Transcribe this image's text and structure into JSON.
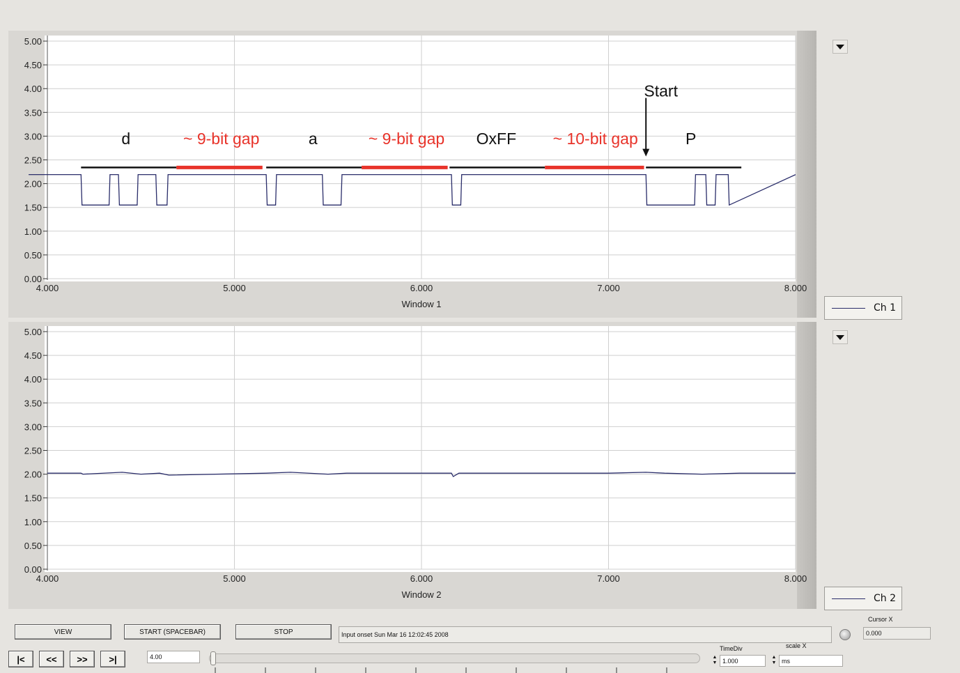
{
  "windows": [
    {
      "name": "Window 1",
      "legend": "Ch 1",
      "chart_data": {
        "type": "line",
        "xlabel": "Window 1",
        "xlim": [
          4.0,
          8.0
        ],
        "ylim": [
          0.0,
          5.0
        ],
        "xticks": [
          "4.000",
          "5.000",
          "6.000",
          "7.000",
          "8.000"
        ],
        "yticks": [
          "0.00",
          "0.50",
          "1.00",
          "1.50",
          "2.00",
          "2.50",
          "3.00",
          "3.50",
          "4.00",
          "4.50",
          "5.00"
        ],
        "grid": true,
        "series": [
          {
            "name": "Ch 1",
            "color": "#2a2d6a",
            "x": [
              3.9,
              4.18,
              4.185,
              4.33,
              4.335,
              4.38,
              4.385,
              4.48,
              4.485,
              4.58,
              4.585,
              4.64,
              4.645,
              5.17,
              5.175,
              5.22,
              5.225,
              5.47,
              5.475,
              5.57,
              5.575,
              6.16,
              6.165,
              6.21,
              6.215,
              7.2,
              7.205,
              7.46,
              7.465,
              7.52,
              7.525,
              7.57,
              7.575,
              7.64,
              7.645,
              8.0
            ],
            "y": [
              2.19,
              2.19,
              1.55,
              1.55,
              2.19,
              2.19,
              1.55,
              1.55,
              2.19,
              2.19,
              1.55,
              1.55,
              2.19,
              2.19,
              1.55,
              1.55,
              2.19,
              2.19,
              1.55,
              1.55,
              2.19,
              2.19,
              1.55,
              1.55,
              2.19,
              2.19,
              1.55,
              1.55,
              2.19,
              2.19,
              1.55,
              1.55,
              2.19,
              2.19,
              1.55,
              2.19
            ]
          }
        ],
        "annotations": [
          {
            "text": "d",
            "x": 4.42,
            "y": 2.95,
            "color": "#111111",
            "bar": [
              4.18,
              4.69
            ]
          },
          {
            "text": "~ 9-bit gap",
            "x": 4.93,
            "y": 2.95,
            "color": "#e8332a",
            "bar": [
              4.69,
              5.15
            ]
          },
          {
            "text": "a",
            "x": 5.42,
            "y": 2.95,
            "color": "#111111",
            "bar": [
              5.17,
              5.68
            ]
          },
          {
            "text": "~ 9-bit gap",
            "x": 5.92,
            "y": 2.95,
            "color": "#e8332a",
            "bar": [
              5.68,
              6.14
            ]
          },
          {
            "text": "OxFF",
            "x": 6.4,
            "y": 2.95,
            "color": "#111111",
            "bar": [
              6.15,
              6.66
            ]
          },
          {
            "text": "~ 10-bit gap",
            "x": 6.93,
            "y": 2.95,
            "color": "#e8332a",
            "bar": [
              6.66,
              7.19
            ]
          },
          {
            "text": "P",
            "x": 7.44,
            "y": 2.95,
            "color": "#111111",
            "bar": [
              7.2,
              7.71
            ]
          },
          {
            "text": "Start",
            "x": 7.28,
            "y": 3.95,
            "color": "#111111",
            "arrow_to": [
              7.2,
              2.6
            ]
          }
        ]
      }
    },
    {
      "name": "Window 2",
      "legend": "Ch 2",
      "chart_data": {
        "type": "line",
        "xlabel": "Window 2",
        "xlim": [
          4.0,
          8.0
        ],
        "ylim": [
          0.0,
          5.0
        ],
        "xticks": [
          "4.000",
          "5.000",
          "6.000",
          "7.000",
          "8.000"
        ],
        "yticks": [
          "0.00",
          "0.50",
          "1.00",
          "1.50",
          "2.00",
          "2.50",
          "3.00",
          "3.50",
          "4.00",
          "4.50",
          "5.00"
        ],
        "grid": true,
        "series": [
          {
            "name": "Ch 2",
            "color": "#2a2d6a",
            "x": [
              4.0,
              4.18,
              4.19,
              4.4,
              4.5,
              4.6,
              4.65,
              5.17,
              5.3,
              5.5,
              5.6,
              6.16,
              6.17,
              6.2,
              7.0,
              7.2,
              7.3,
              7.5,
              7.7,
              8.0
            ],
            "y": [
              2.02,
              2.02,
              2.0,
              2.04,
              2.0,
              2.02,
              1.98,
              2.02,
              2.04,
              2.0,
              2.02,
              2.02,
              1.95,
              2.02,
              2.02,
              2.04,
              2.02,
              2.0,
              2.02,
              2.02
            ]
          }
        ]
      }
    }
  ],
  "controls": {
    "view_label": "VIEW",
    "start_label": "START (SPACEBAR)",
    "stop_label": "STOP",
    "status_text": "Input onset Sun Mar 16 12:02:45 2008",
    "cursor_x_label": "Cursor X",
    "cursor_x_value": "0.000",
    "position_value": "4.00",
    "timediv_label": "TimeDiv",
    "timediv_value": "1.000",
    "scalex_label": "scale X",
    "scalex_value": "ms",
    "nav": [
      "|<",
      "<<",
      ">>",
      ">|"
    ],
    "slider_position": 0.0
  }
}
